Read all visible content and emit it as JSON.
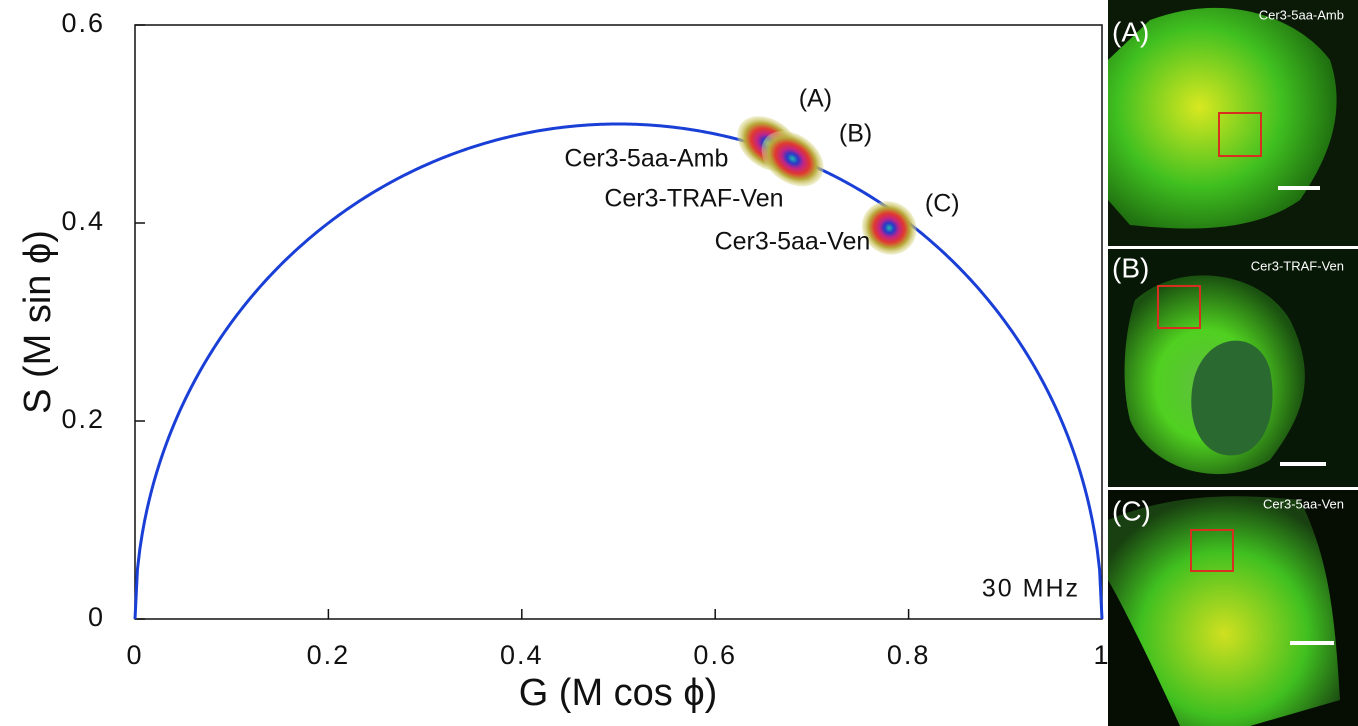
{
  "chart_data": {
    "type": "scatter",
    "x_label": "G (M cos ϕ)",
    "y_label": "S (M sin ϕ)",
    "xlim": [
      0,
      1
    ],
    "ylim": [
      0,
      0.6
    ],
    "xticks": [
      0,
      0.2,
      0.4,
      0.6,
      0.8,
      1
    ],
    "yticks": [
      0,
      0.2,
      0.4,
      0.6
    ],
    "annotation": "30 MHz",
    "circle_color": "#1a3fd6",
    "series": [
      {
        "name": "Cer3-5aa-Amb",
        "tag": "(A)",
        "x": [
          0.655
        ],
        "values": [
          0.48
        ]
      },
      {
        "name": "Cer3-TRAF-Ven",
        "tag": "(B)",
        "x": [
          0.68
        ],
        "values": [
          0.465
        ]
      },
      {
        "name": "Cer3-5aa-Ven",
        "tag": "(C)",
        "x": [
          0.78
        ],
        "values": [
          0.395
        ]
      }
    ]
  },
  "panels": [
    {
      "label": "(A)",
      "title": "Cer3-5aa-Amb"
    },
    {
      "label": "(B)",
      "title": "Cer3-TRAF-Ven"
    },
    {
      "label": "(C)",
      "title": "Cer3-5aa-Ven"
    }
  ]
}
